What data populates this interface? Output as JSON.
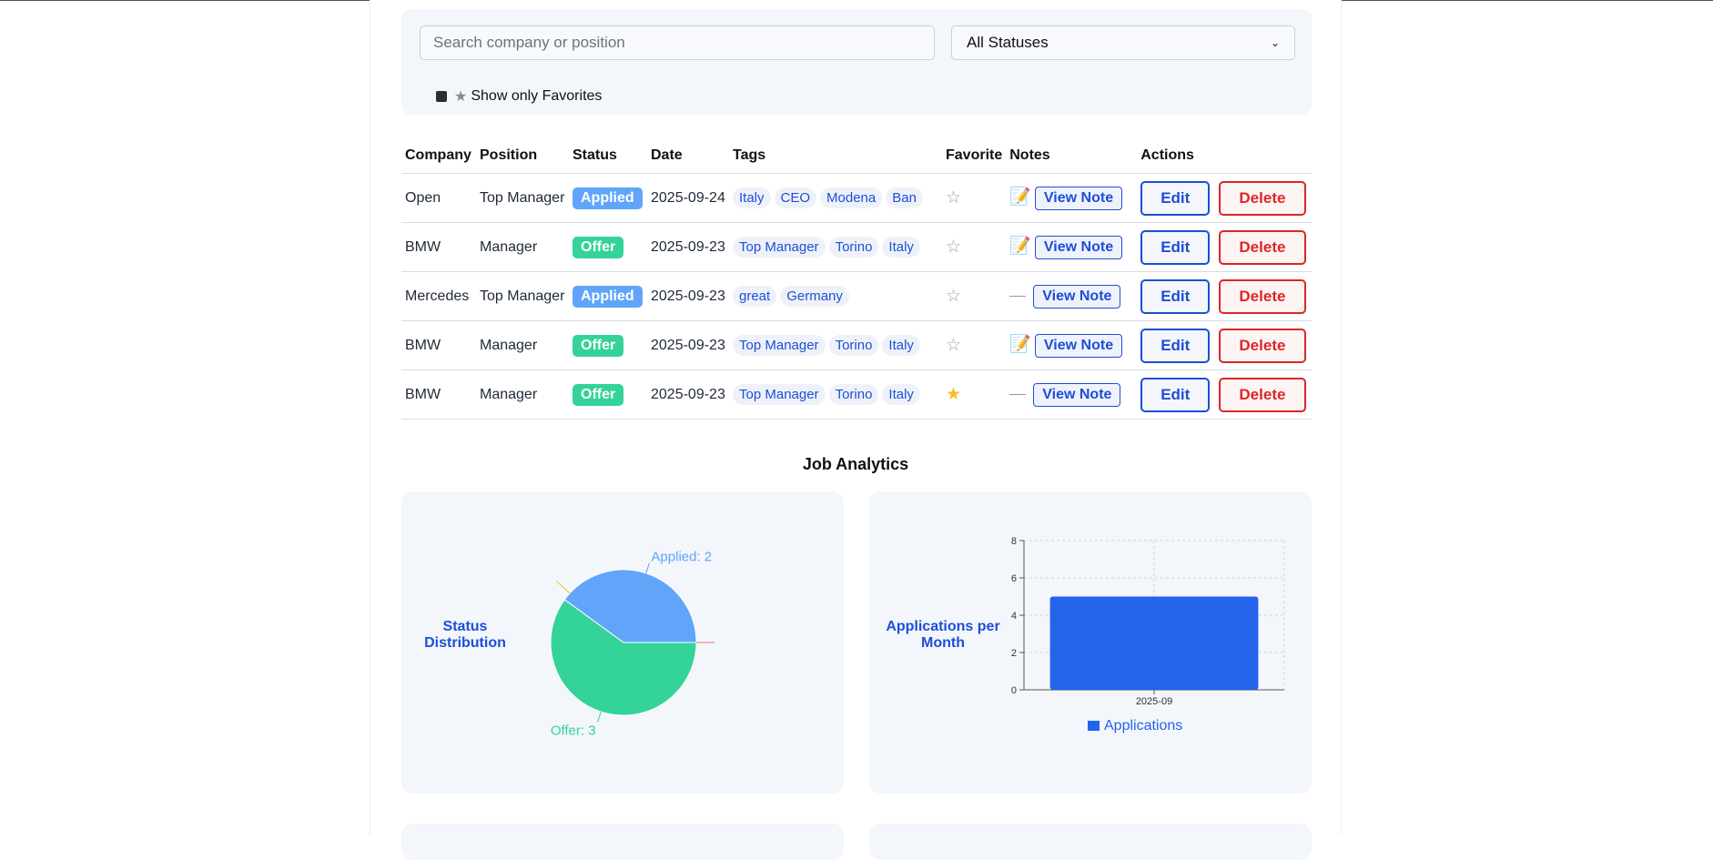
{
  "filters": {
    "search_placeholder": "Search company or position",
    "status_selected": "All Statuses",
    "favorites_label": "Show only Favorites"
  },
  "table": {
    "headers": [
      "Company",
      "Position",
      "Status",
      "Date",
      "Tags",
      "Favorite",
      "Notes",
      "Actions"
    ],
    "rows": [
      {
        "company": "Open",
        "position": "Top Manager",
        "status": "Applied",
        "date": "2025-09-24",
        "tags": [
          "Italy",
          "CEO",
          "Modena",
          "Ban"
        ],
        "favorite": false,
        "has_note": true,
        "view_note": "View Note",
        "edit": "Edit",
        "delete": "Delete"
      },
      {
        "company": "BMW",
        "position": "Manager",
        "status": "Offer",
        "date": "2025-09-23",
        "tags": [
          "Top Manager",
          "Torino",
          "Italy"
        ],
        "favorite": false,
        "has_note": true,
        "view_note": "View Note",
        "edit": "Edit",
        "delete": "Delete"
      },
      {
        "company": "Mercedes",
        "position": "Top Manager",
        "status": "Applied",
        "date": "2025-09-23",
        "tags": [
          "great",
          "Germany"
        ],
        "favorite": false,
        "has_note": false,
        "view_note": "View Note",
        "edit": "Edit",
        "delete": "Delete"
      },
      {
        "company": "BMW",
        "position": "Manager",
        "status": "Offer",
        "date": "2025-09-23",
        "tags": [
          "Top Manager",
          "Torino",
          "Italy"
        ],
        "favorite": false,
        "has_note": true,
        "view_note": "View Note",
        "edit": "Edit",
        "delete": "Delete"
      },
      {
        "company": "BMW",
        "position": "Manager",
        "status": "Offer",
        "date": "2025-09-23",
        "tags": [
          "Top Manager",
          "Torino",
          "Italy"
        ],
        "favorite": true,
        "has_note": false,
        "view_note": "View Note",
        "edit": "Edit",
        "delete": "Delete"
      }
    ]
  },
  "analytics": {
    "title": "Job Analytics",
    "status_card_label": "Status Distribution",
    "month_card_label": "Applications per Month"
  },
  "colors": {
    "applied": "#60a5fa",
    "offer": "#34d399",
    "bar": "#2563eb",
    "accent": "#1d4ed8",
    "danger": "#dc2626"
  },
  "chart_data": [
    {
      "type": "pie",
      "categories": [
        "Applied",
        "Offer"
      ],
      "values": [
        2,
        3
      ],
      "labels": [
        "Applied: 2",
        "Offer: 3"
      ]
    },
    {
      "type": "bar",
      "categories": [
        "2025-09"
      ],
      "series": [
        {
          "name": "Applications",
          "values": [
            5
          ]
        }
      ],
      "ylim": [
        0,
        8
      ],
      "yticks": [
        "0",
        "2",
        "4",
        "6",
        "8"
      ],
      "grid": true,
      "legend": "bottom"
    }
  ]
}
